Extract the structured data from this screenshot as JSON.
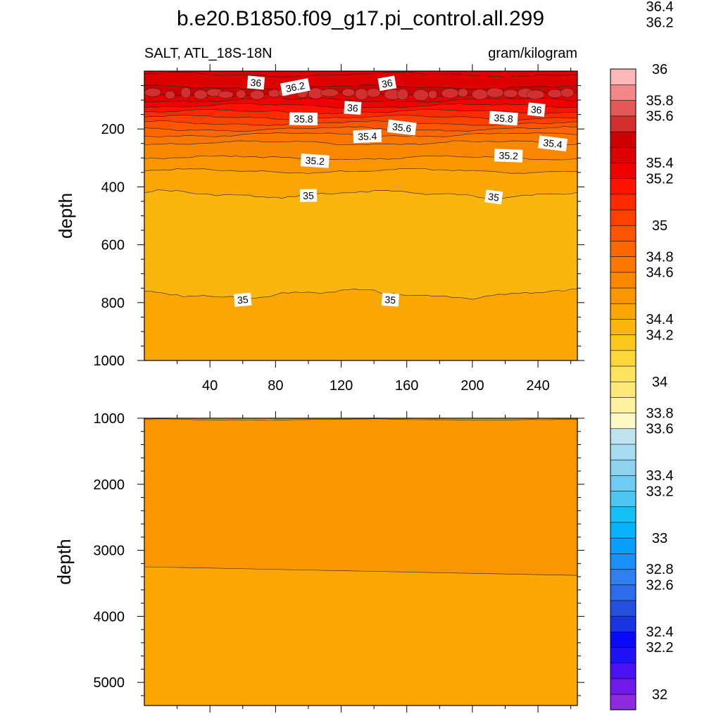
{
  "title": "b.e20.B1850.f09_g17.pi_control.all.299",
  "subtitle_left": "SALT, ATL_18S-18N",
  "subtitle_right": "gram/kilogram",
  "chart_data": [
    {
      "type": "heatmap",
      "panel": "upper",
      "ylabel": "depth",
      "xlim": [
        0,
        264
      ],
      "ylim": [
        1000,
        0
      ],
      "x_ticks": [
        "40",
        "80",
        "120",
        "160",
        "200",
        "240"
      ],
      "x_tick_values": [
        40,
        80,
        120,
        160,
        200,
        240
      ],
      "y_ticks": [
        "200",
        "400",
        "600",
        "800",
        "1000"
      ],
      "y_tick_values": [
        200,
        400,
        600,
        800,
        1000
      ],
      "contour_depths": [
        {
          "level": 36.0,
          "depth": 75
        },
        {
          "level": 35.8,
          "depth": 165
        },
        {
          "level": 35.6,
          "depth": 200
        },
        {
          "level": 35.4,
          "depth": 235
        },
        {
          "level": 35.2,
          "depth": 305
        },
        {
          "level": 35.0,
          "depth": 425
        },
        {
          "level": 35.0,
          "depth": 770
        }
      ],
      "contour_labels": [
        {
          "text": "36",
          "x": 68,
          "depth": 40
        },
        {
          "text": "36.2",
          "x": 92,
          "depth": 55
        },
        {
          "text": "36",
          "x": 148,
          "depth": 42
        },
        {
          "text": "36",
          "x": 127,
          "depth": 127
        },
        {
          "text": "35.8",
          "x": 97,
          "depth": 165
        },
        {
          "text": "35.6",
          "x": 157,
          "depth": 195
        },
        {
          "text": "35.4",
          "x": 136,
          "depth": 225
        },
        {
          "text": "35.8",
          "x": 219,
          "depth": 163
        },
        {
          "text": "36",
          "x": 239,
          "depth": 133
        },
        {
          "text": "35.4",
          "x": 249,
          "depth": 250
        },
        {
          "text": "35.2",
          "x": 104,
          "depth": 310
        },
        {
          "text": "35.2",
          "x": 222,
          "depth": 292
        },
        {
          "text": "35",
          "x": 100,
          "depth": 430
        },
        {
          "text": "35",
          "x": 213,
          "depth": 435
        },
        {
          "text": "35",
          "x": 60,
          "depth": 790
        },
        {
          "text": "35",
          "x": 150,
          "depth": 790
        }
      ]
    },
    {
      "type": "heatmap",
      "panel": "lower",
      "ylabel": "depth",
      "xlim": [
        0,
        264
      ],
      "ylim": [
        5350,
        1000
      ],
      "y_ticks": [
        "1000",
        "2000",
        "3000",
        "4000",
        "5000"
      ],
      "y_tick_values": [
        1000,
        2000,
        3000,
        4000,
        5000
      ],
      "contour_depths": [
        {
          "level": 35.0,
          "depth_left": 3250,
          "depth_right": 3380
        }
      ]
    }
  ],
  "colorbar": {
    "labels": [
      "36.4",
      "36.2",
      "36",
      "35.8",
      "35.6",
      "35.4",
      "35.2",
      "35",
      "34.8",
      "34.6",
      "34.4",
      "34.2",
      "34",
      "33.8",
      "33.6",
      "33.4",
      "33.2",
      "33",
      "32.8",
      "32.6",
      "32.4",
      "32.2",
      "32"
    ],
    "label_values": [
      36.4,
      36.2,
      36.0,
      35.8,
      35.6,
      35.4,
      35.2,
      35.0,
      34.8,
      34.6,
      34.4,
      34.2,
      34.0,
      33.8,
      33.6,
      33.4,
      33.2,
      33.0,
      32.8,
      32.6,
      32.4,
      32.2,
      32.0
    ],
    "colors": [
      "#8e2bdf",
      "#6e1bea",
      "#4a12f2",
      "#1f12f5",
      "#0a0afa",
      "#1a35e2",
      "#2550de",
      "#2d6be8",
      "#2f7ff0",
      "#1a8ff8",
      "#0b9ffb",
      "#08b3fb",
      "#15c0f7",
      "#4fc6f2",
      "#6fcbf1",
      "#8fd2ee",
      "#a8dcf0",
      "#bfe4ef",
      "#fff9c8",
      "#fff1a0",
      "#fee87a",
      "#fde35e",
      "#fdd63b",
      "#fcc81e",
      "#fbb50f",
      "#faa605",
      "#f99601",
      "#f98800",
      "#fb7800",
      "#fc6700",
      "#fd5500",
      "#fe4000",
      "#fe2a00",
      "#fe1200",
      "#f10000",
      "#dc0000",
      "#cc0000",
      "#d43030",
      "#e35858",
      "#f38888",
      "#fcb8b8"
    ]
  }
}
